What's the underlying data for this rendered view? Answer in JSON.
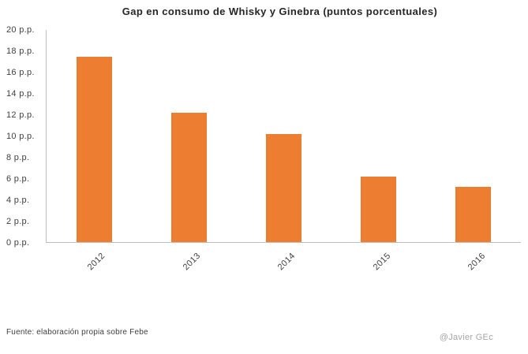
{
  "chart_data": {
    "type": "bar",
    "title": "Gap en consumo de Whisky y Ginebra (puntos porcentuales)",
    "categories": [
      "2012",
      "2013",
      "2014",
      "2015",
      "2016"
    ],
    "values": [
      17.5,
      12.2,
      10.2,
      6.2,
      5.2
    ],
    "ylim": [
      0,
      20
    ],
    "ytick_step": 2,
    "ytick_labels": [
      "0 p.p.",
      "2 p.p.",
      "4 p.p.",
      "6 p.p.",
      "8 p.p.",
      "10 p.p.",
      "12 p.p.",
      "14 p.p.",
      "16 p.p.",
      "18 p.p.",
      "20 p.p."
    ],
    "xlabel": "",
    "ylabel": "",
    "grid": false,
    "legend": false,
    "bar_color": "#ED7D31",
    "axis_color": "#BFBFBF"
  },
  "footer": {
    "source": "Fuente: elaboración propia  sobre Febe",
    "watermark": "@Javier GEc"
  }
}
